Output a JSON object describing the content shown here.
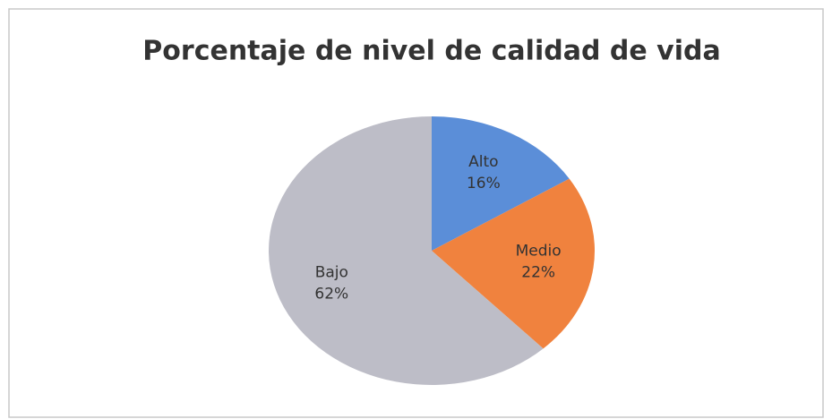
{
  "chart_data": {
    "type": "pie",
    "title": "Porcentaje de nivel de calidad de vida",
    "categories": [
      "Alto",
      "Medio",
      "Bajo"
    ],
    "values": [
      16,
      22,
      62
    ],
    "value_labels": [
      "16%",
      "22%",
      "62%"
    ],
    "colors": [
      "#5b8ed8",
      "#f0823e",
      "#bdbdc7"
    ]
  }
}
